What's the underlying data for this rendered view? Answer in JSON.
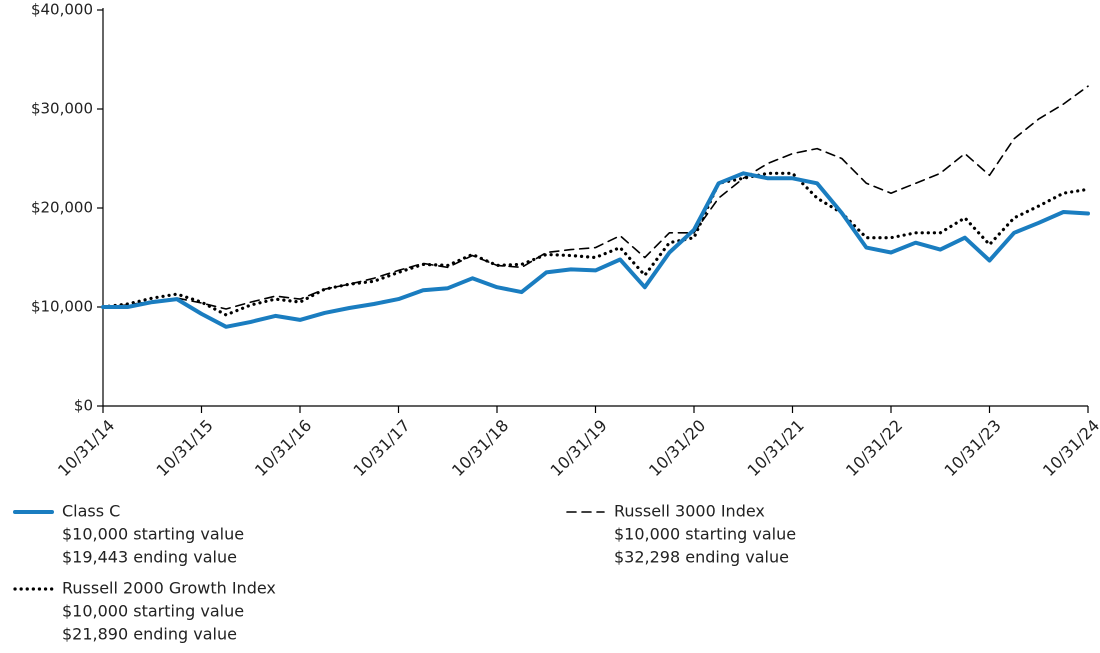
{
  "chart_data": {
    "type": "line",
    "categories": [
      "10/31/14",
      null,
      null,
      null,
      "10/31/15",
      null,
      null,
      null,
      "10/31/16",
      null,
      null,
      null,
      "10/31/17",
      null,
      null,
      null,
      "10/31/18",
      null,
      null,
      null,
      "10/31/19",
      null,
      null,
      null,
      "10/31/20",
      null,
      null,
      null,
      "10/31/21",
      null,
      null,
      null,
      "10/31/22",
      null,
      null,
      null,
      "10/31/23",
      null,
      null,
      null,
      "10/31/24"
    ],
    "series": [
      {
        "name": "Class C",
        "color": "#1a7dc0",
        "style": "solid",
        "notes": [
          "$10,000 starting value",
          "$19,443 ending value"
        ],
        "values": [
          10000,
          10000,
          10500,
          10800,
          9300,
          8000,
          8500,
          9100,
          8700,
          9400,
          9900,
          10300,
          10800,
          11700,
          11900,
          12900,
          12000,
          11500,
          13500,
          13800,
          13700,
          14800,
          12000,
          15500,
          17800,
          22500,
          23500,
          23000,
          23000,
          22500,
          19500,
          16000,
          15500,
          16500,
          15800,
          17000,
          14700,
          17500,
          18500,
          19600,
          19443
        ]
      },
      {
        "name": "Russell 2000 Growth Index",
        "color": "#000000",
        "style": "dotted",
        "notes": [
          "$10,000 starting value",
          "$21,890 ending value"
        ],
        "values": [
          10000,
          10300,
          10900,
          11300,
          10500,
          9200,
          10200,
          10800,
          10500,
          11800,
          12300,
          12600,
          13500,
          14300,
          14200,
          15300,
          14200,
          14300,
          15300,
          15200,
          15000,
          16000,
          13200,
          16500,
          17000,
          22500,
          23000,
          23500,
          23500,
          21000,
          19500,
          17000,
          17000,
          17500,
          17500,
          19000,
          16300,
          19000,
          20200,
          21500,
          21890
        ]
      },
      {
        "name": "Russell 3000 Index",
        "color": "#000000",
        "style": "dashed",
        "notes": [
          "$10,000 starting value",
          "$32,298 ending value"
        ],
        "values": [
          10000,
          10200,
          10600,
          10900,
          10400,
          9800,
          10500,
          11100,
          10800,
          11800,
          12300,
          12900,
          13700,
          14400,
          14000,
          15200,
          14200,
          14000,
          15500,
          15800,
          16000,
          17200,
          15000,
          17500,
          17500,
          21000,
          23000,
          24500,
          25500,
          26000,
          25000,
          22500,
          21500,
          22500,
          23500,
          25500,
          23300,
          27000,
          29000,
          30500,
          32298
        ]
      }
    ],
    "ylim": [
      0,
      40000
    ],
    "yticks": [
      {
        "value": 0,
        "label": "$0"
      },
      {
        "value": 10000,
        "label": "$10,000"
      },
      {
        "value": 20000,
        "label": "$20,000"
      },
      {
        "value": 30000,
        "label": "$30,000"
      },
      {
        "value": 40000,
        "label": "$40,000"
      }
    ],
    "grid": false
  }
}
